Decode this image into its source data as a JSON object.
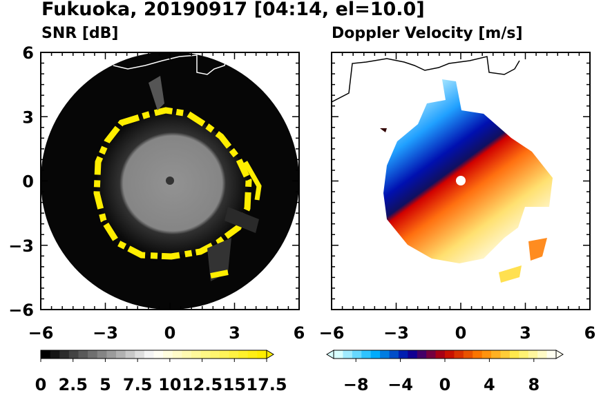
{
  "title": "Fukuoka, 20190917 [04:14, el=10.0]",
  "chart_data": [
    {
      "type": "heatmap",
      "subtitle": "SNR [dB]",
      "xlim": [
        -6,
        6
      ],
      "ylim": [
        -6,
        6
      ],
      "x_ticks": [
        "−6",
        "−3",
        "0",
        "3",
        "6"
      ],
      "y_ticks": [
        "6",
        "3",
        "0",
        "−3",
        "−6"
      ],
      "colorbar": {
        "ticks": [
          "0",
          "2.5",
          "5",
          "7.5",
          "10",
          "12.5",
          "15",
          "17.5"
        ],
        "range": [
          0,
          17.5
        ],
        "colors": [
          "#000000",
          "#ffffff",
          "#ffee00"
        ]
      }
    },
    {
      "type": "heatmap",
      "subtitle": "Doppler Velocity [m/s]",
      "xlim": [
        -6,
        6
      ],
      "ylim": [
        -6,
        6
      ],
      "x_ticks": [
        "−6",
        "−3",
        "0",
        "3",
        "6"
      ],
      "y_ticks": [],
      "colorbar": {
        "ticks": [
          "−8",
          "−4",
          "0",
          "4",
          "8"
        ],
        "range": [
          -10,
          10
        ],
        "colors": [
          "#d8ffff",
          "#00b4ff",
          "#0000a0",
          "#c00000",
          "#ff8000",
          "#ffee50",
          "#fffff0"
        ]
      }
    }
  ]
}
